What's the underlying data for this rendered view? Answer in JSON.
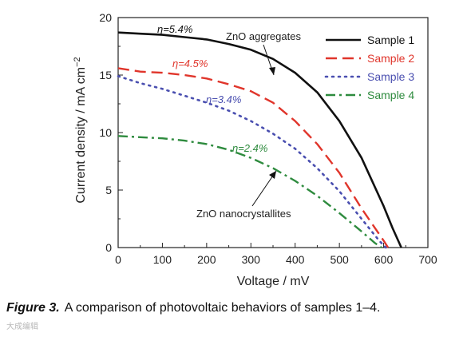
{
  "chart_data": {
    "type": "line",
    "xlabel": "Voltage / mV",
    "ylabel_main": "Current density / mA cm",
    "ylabel_sup": "−2",
    "xlim": [
      0,
      700
    ],
    "ylim": [
      0,
      20
    ],
    "xticks": [
      0,
      100,
      200,
      300,
      400,
      500,
      600,
      700
    ],
    "yticks": [
      0,
      5,
      10,
      15,
      20
    ],
    "grid": false,
    "legend_position": "top-right",
    "series": [
      {
        "name": "Sample 1",
        "color": "#111111",
        "dash": "solid",
        "x": [
          0,
          50,
          100,
          150,
          200,
          250,
          300,
          350,
          400,
          450,
          500,
          550,
          600,
          620,
          640
        ],
        "y": [
          18.7,
          18.6,
          18.5,
          18.3,
          18.1,
          17.7,
          17.2,
          16.4,
          15.2,
          13.5,
          11.0,
          7.8,
          3.6,
          1.7,
          0
        ]
      },
      {
        "name": "Sample 2",
        "color": "#e0352b",
        "dash": "dashed",
        "x": [
          0,
          50,
          100,
          150,
          200,
          250,
          300,
          350,
          400,
          450,
          500,
          550,
          600,
          610
        ],
        "y": [
          15.6,
          15.3,
          15.2,
          15.0,
          14.7,
          14.2,
          13.6,
          12.6,
          11.0,
          9.0,
          6.5,
          3.4,
          0.6,
          0
        ]
      },
      {
        "name": "Sample 3",
        "color": "#4a4fb0",
        "dash": "dotted",
        "x": [
          0,
          50,
          100,
          150,
          200,
          250,
          300,
          350,
          400,
          450,
          500,
          550,
          590,
          605
        ],
        "y": [
          14.9,
          14.3,
          13.8,
          13.2,
          12.6,
          11.9,
          11.0,
          9.9,
          8.6,
          6.9,
          4.9,
          2.5,
          0.6,
          0
        ]
      },
      {
        "name": "Sample 4",
        "color": "#2e8b3e",
        "dash": "dashdot",
        "x": [
          0,
          50,
          100,
          150,
          200,
          250,
          300,
          350,
          400,
          450,
          500,
          550,
          580,
          595
        ],
        "y": [
          9.7,
          9.6,
          9.5,
          9.3,
          9.0,
          8.5,
          7.8,
          6.9,
          5.8,
          4.5,
          3.0,
          1.4,
          0.4,
          0
        ]
      }
    ],
    "annotations": {
      "aggregates": "ZnO aggregates",
      "nanocrystallites": "ZnO nanocrystallites"
    },
    "efficiencies": [
      {
        "label": "η=5.4%",
        "color": "#111111"
      },
      {
        "label": "η=4.5%",
        "color": "#e0352b"
      },
      {
        "label": "η=3.4%",
        "color": "#4a4fb0"
      },
      {
        "label": "η=2.4%",
        "color": "#2e8b3e"
      }
    ]
  },
  "caption": {
    "lead": "Figure 3.",
    "text": "A comparison of photovoltaic behaviors of samples 1–4."
  },
  "watermark": "大成编辑"
}
